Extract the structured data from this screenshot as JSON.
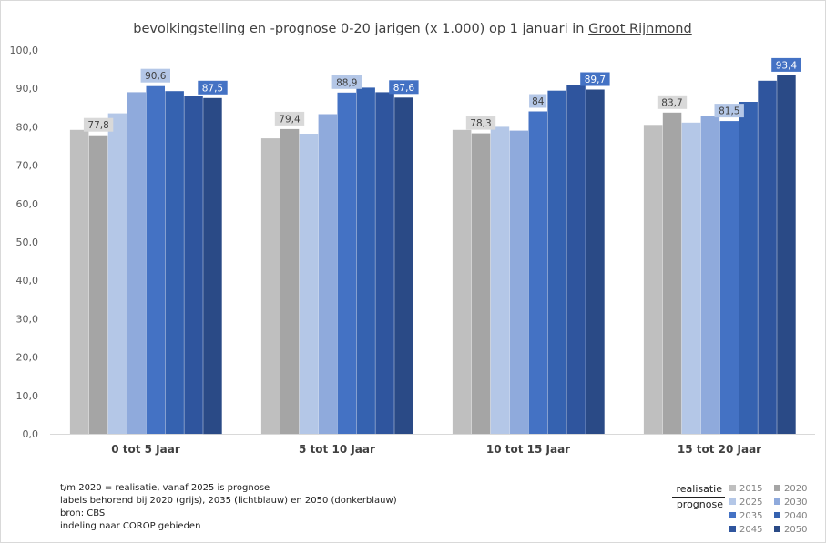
{
  "chart_data": {
    "type": "bar",
    "title": "bevolkingstelling en -prognose 0-20 jarigen (x 1.000) op 1 januari in ",
    "title_link": "Groot Rijnmond",
    "categories": [
      "0 tot 5 Jaar",
      "5 tot 10 Jaar",
      "10 tot 15 Jaar",
      "15 tot 20 Jaar"
    ],
    "ylim": [
      0,
      100
    ],
    "yticks": [
      "0,0",
      "10,0",
      "20,0",
      "30,0",
      "40,0",
      "50,0",
      "60,0",
      "70,0",
      "80,0",
      "90,0",
      "100,0"
    ],
    "grid": false,
    "series": [
      {
        "name": "2015",
        "color": "#bfbfbf",
        "values": [
          79.2,
          77.0,
          79.2,
          80.5
        ]
      },
      {
        "name": "2020",
        "color": "#a5a5a5",
        "values": [
          77.8,
          79.4,
          78.3,
          83.7
        ]
      },
      {
        "name": "2025",
        "color": "#b4c7e7",
        "values": [
          83.5,
          78.2,
          80.0,
          81.1
        ]
      },
      {
        "name": "2030",
        "color": "#8faadc",
        "values": [
          89.0,
          83.3,
          79.0,
          82.7
        ]
      },
      {
        "name": "2035",
        "color": "#4472c4",
        "values": [
          90.6,
          88.9,
          84.0,
          81.5
        ]
      },
      {
        "name": "2040",
        "color": "#3562b0",
        "values": [
          89.3,
          90.2,
          89.4,
          86.5
        ]
      },
      {
        "name": "2045",
        "color": "#2f559e",
        "values": [
          88.0,
          89.0,
          90.8,
          92.0
        ]
      },
      {
        "name": "2050",
        "color": "#2a4a86",
        "values": [
          87.5,
          87.6,
          89.7,
          93.4
        ]
      }
    ],
    "data_labels": [
      {
        "series": "2020",
        "values": [
          "77,8",
          "79,4",
          "78,3",
          "83,7"
        ],
        "bg": "#d9d9d9",
        "fg": "#404040"
      },
      {
        "series": "2035",
        "values": [
          "90,6",
          "88,9",
          "84",
          "81,5"
        ],
        "bg": "#b4c7e7",
        "fg": "#404040"
      },
      {
        "series": "2050",
        "values": [
          "87,5",
          "87,6",
          "89,7",
          "93,4"
        ],
        "bg": "#4472c4",
        "fg": "#ffffff"
      }
    ],
    "legend": {
      "placement": "bottom-right",
      "group_realisatie": "realisatie",
      "group_prognose": "prognose"
    }
  },
  "notes": [
    "t/m 2020 = realisatie, vanaf 2025 is prognose",
    "labels behorend bij 2020 (grijs), 2035 (lichtblauw) en 2050 (donkerblauw)",
    "bron: CBS",
    "indeling naar COROP gebieden"
  ]
}
